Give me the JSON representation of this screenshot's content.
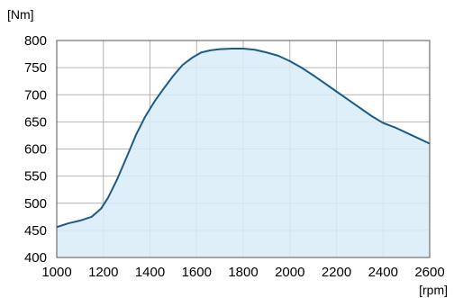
{
  "chart_data": {
    "type": "area",
    "x_unit_label": "[rpm]",
    "y_unit_label": "[Nm]",
    "xlim": [
      1000,
      2600
    ],
    "ylim": [
      400,
      800
    ],
    "x_ticks": [
      1000,
      1200,
      1400,
      1600,
      1800,
      2000,
      2200,
      2400,
      2600
    ],
    "y_ticks": [
      400,
      450,
      500,
      550,
      600,
      650,
      700,
      750,
      800
    ],
    "grid": true,
    "colors": {
      "line": "#1b5a8a",
      "fill": "#d9ecf8",
      "grid": "#b4b4b4",
      "axis": "#555555"
    },
    "series": [
      {
        "x": [
          1000,
          1050,
          1100,
          1150,
          1190,
          1220,
          1260,
          1300,
          1340,
          1380,
          1420,
          1460,
          1500,
          1540,
          1580,
          1620,
          1660,
          1700,
          1750,
          1800,
          1850,
          1900,
          1950,
          2000,
          2050,
          2100,
          2150,
          2200,
          2250,
          2300,
          2350,
          2400,
          2450,
          2500,
          2550,
          2600
        ],
        "y": [
          456,
          463,
          468,
          475,
          490,
          510,
          545,
          585,
          626,
          660,
          688,
          712,
          735,
          755,
          768,
          778,
          782,
          784,
          785,
          785,
          783,
          778,
          772,
          762,
          750,
          736,
          721,
          706,
          691,
          676,
          661,
          648,
          640,
          630,
          620,
          610
        ]
      }
    ]
  }
}
